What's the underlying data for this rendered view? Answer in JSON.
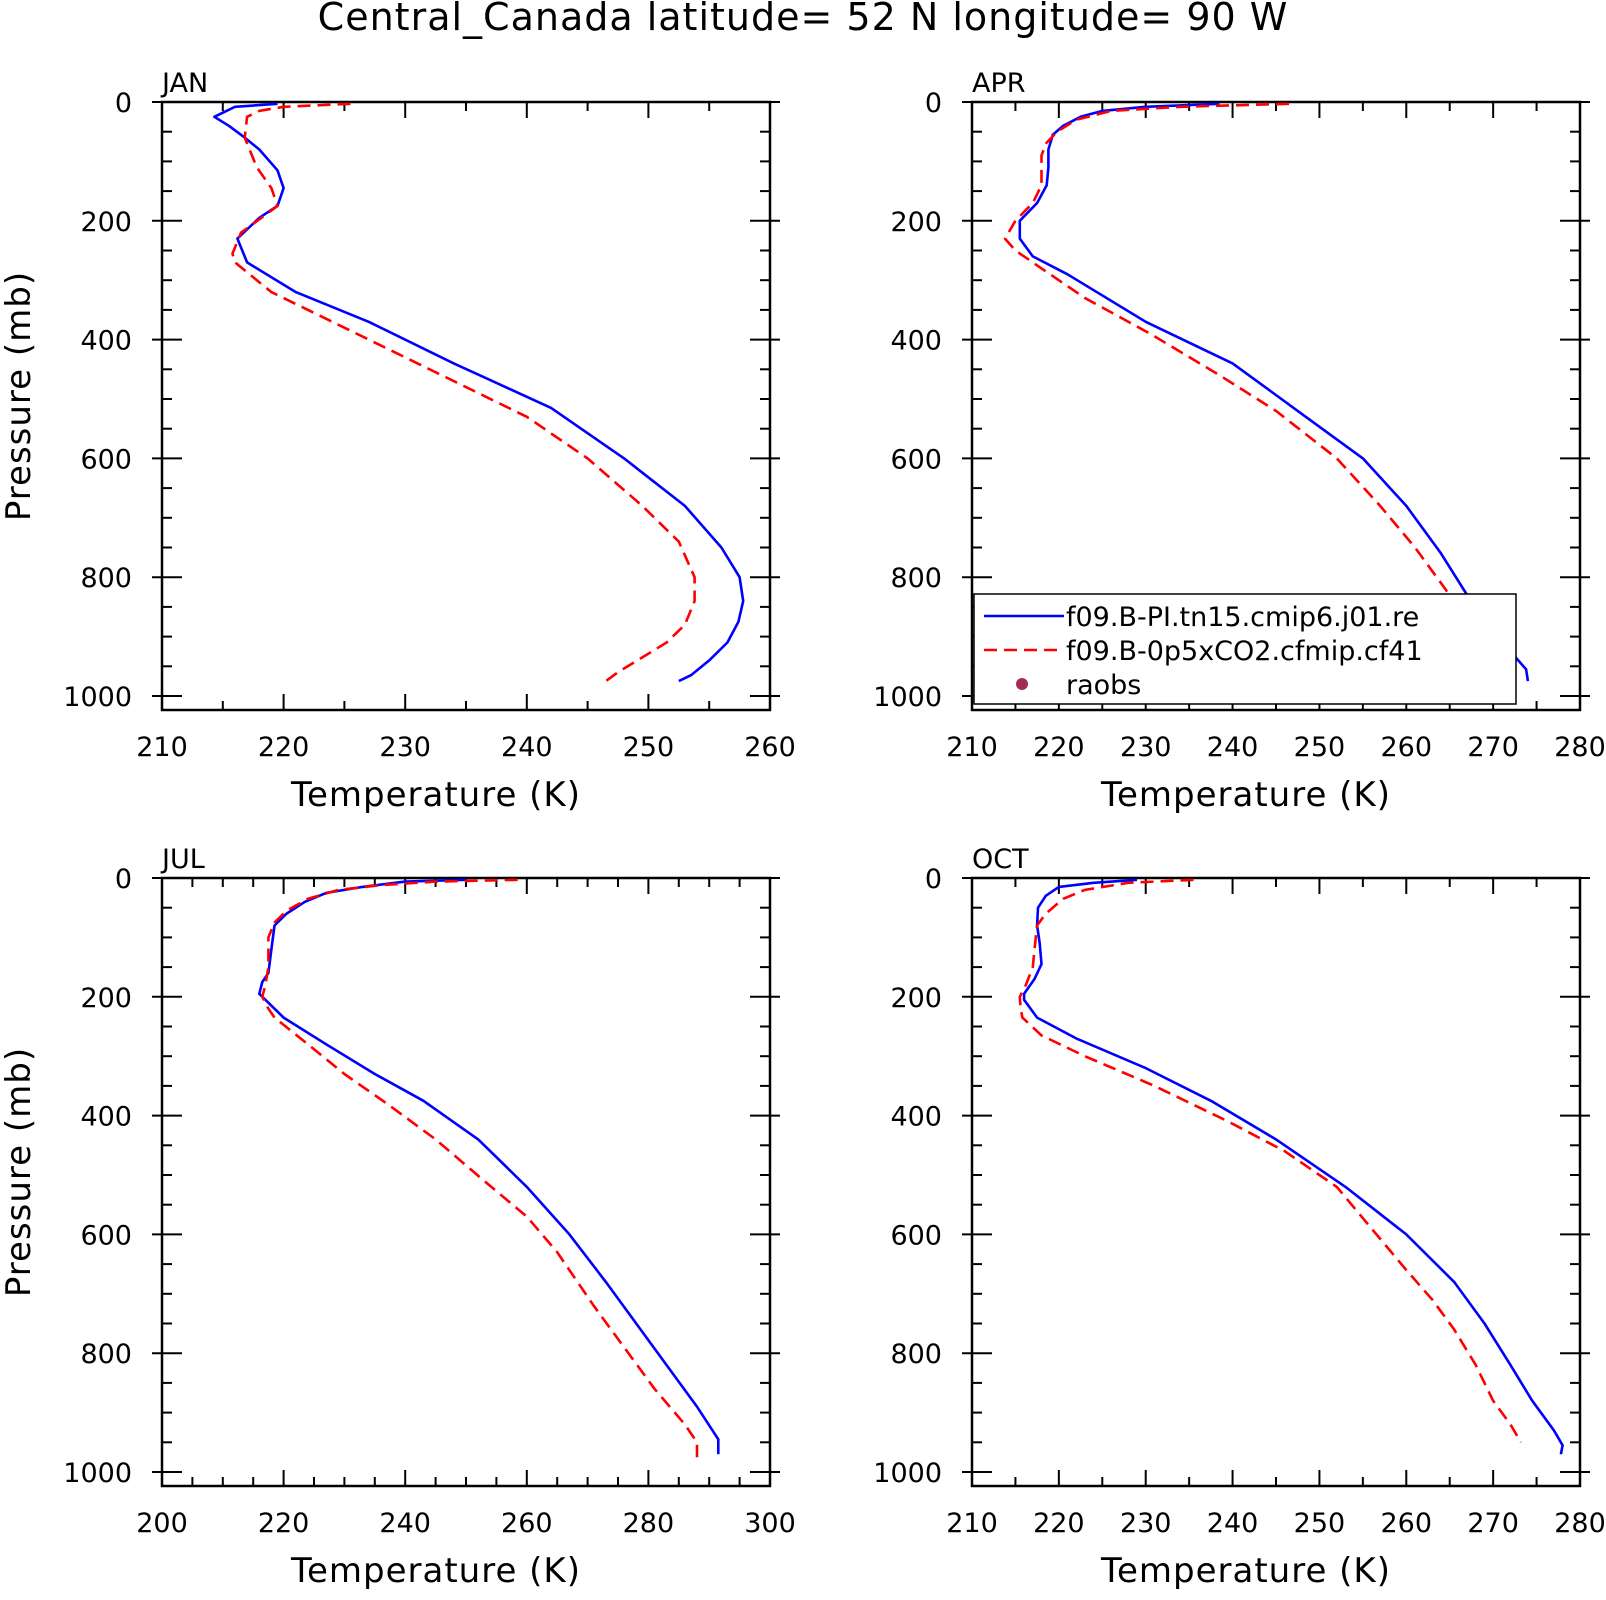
{
  "title": "Central_Canada  latitude= 52 N longitude= 90 W",
  "legend": {
    "entries": [
      {
        "label": "f09.B-PI.tn15.cmip6.j01.re",
        "color": "#0000ff",
        "style": "solid"
      },
      {
        "label": "f09.B-0p5xCO2.cfmip.cf41",
        "color": "#ff0000",
        "style": "dashed"
      },
      {
        "label": "raobs",
        "color": "#a52a5a",
        "style": "marker"
      }
    ],
    "panel": "APR",
    "placement": "lower-left"
  },
  "chart_data": [
    {
      "type": "line",
      "panel": "JAN",
      "xlabel": "Temperature (K)",
      "ylabel": "Pressure (mb)",
      "xlim": [
        210,
        260
      ],
      "ylim": [
        1000,
        0
      ],
      "xticks": [
        "210",
        "220",
        "230",
        "240",
        "250",
        "260"
      ],
      "yticks": [
        "0",
        "200",
        "400",
        "600",
        "800",
        "1000"
      ],
      "series": [
        {
          "name": "f09.B-PI.tn15.cmip6.j01.re",
          "color": "#0000ff",
          "points": [
            [
              219.5,
              3
            ],
            [
              216,
              8
            ],
            [
              214.3,
              25
            ],
            [
              215.5,
              40
            ],
            [
              216.8,
              60
            ],
            [
              218,
              80
            ],
            [
              219.5,
              115
            ],
            [
              220,
              145
            ],
            [
              219.5,
              175
            ],
            [
              218,
              195
            ],
            [
              216.2,
              230
            ],
            [
              217,
              270
            ],
            [
              221,
              320
            ],
            [
              227,
              370
            ],
            [
              234,
              440
            ],
            [
              242,
              515
            ],
            [
              248,
              600
            ],
            [
              253,
              680
            ],
            [
              256,
              750
            ],
            [
              257.5,
              800
            ],
            [
              257.8,
              840
            ],
            [
              257.4,
              875
            ],
            [
              256.5,
              910
            ],
            [
              255,
              940
            ],
            [
              253.5,
              965
            ],
            [
              252.5,
              975
            ]
          ]
        },
        {
          "name": "f09.B-0p5xCO2.cfmip.cf41",
          "color": "#ff0000",
          "points": [
            [
              225.5,
              3
            ],
            [
              220,
              8
            ],
            [
              218,
              15
            ],
            [
              217,
              25
            ],
            [
              216.8,
              60
            ],
            [
              217.8,
              110
            ],
            [
              219,
              145
            ],
            [
              219.5,
              175
            ],
            [
              218.5,
              190
            ],
            [
              216.5,
              220
            ],
            [
              215.8,
              255
            ],
            [
              216,
              270
            ],
            [
              219,
              320
            ],
            [
              225,
              380
            ],
            [
              233,
              460
            ],
            [
              240,
              530
            ],
            [
              245,
              600
            ],
            [
              249.5,
              680
            ],
            [
              252.5,
              740
            ],
            [
              253.8,
              800
            ],
            [
              253.8,
              840
            ],
            [
              253,
              880
            ],
            [
              251.5,
              910
            ],
            [
              249.5,
              935
            ],
            [
              247.5,
              960
            ],
            [
              246.5,
              975
            ]
          ]
        }
      ]
    },
    {
      "type": "line",
      "panel": "APR",
      "xlabel": "Temperature (K)",
      "ylabel": "",
      "xlim": [
        210,
        280
      ],
      "ylim": [
        1000,
        0
      ],
      "xticks": [
        "210",
        "220",
        "230",
        "240",
        "250",
        "260",
        "270",
        "280"
      ],
      "yticks": [
        "0",
        "200",
        "400",
        "600",
        "800",
        "1000"
      ],
      "series": [
        {
          "name": "f09.B-PI.tn15.cmip6.j01.re",
          "color": "#0000ff",
          "points": [
            [
              238.5,
              3
            ],
            [
              230,
              8
            ],
            [
              225,
              15
            ],
            [
              222.5,
              25
            ],
            [
              220.5,
              40
            ],
            [
              219.3,
              55
            ],
            [
              218.8,
              80
            ],
            [
              218.8,
              110
            ],
            [
              218.6,
              140
            ],
            [
              217.5,
              170
            ],
            [
              215.5,
              200
            ],
            [
              215.5,
              230
            ],
            [
              217,
              260
            ],
            [
              221,
              290
            ],
            [
              230,
              370
            ],
            [
              240,
              440
            ],
            [
              247.5,
              520
            ],
            [
              255,
              600
            ],
            [
              260,
              680
            ],
            [
              264,
              760
            ],
            [
              267,
              830
            ],
            [
              269.5,
              880
            ],
            [
              272,
              925
            ],
            [
              273.8,
              955
            ],
            [
              274,
              975
            ]
          ]
        },
        {
          "name": "f09.B-0p5xCO2.cfmip.cf41",
          "color": "#ff0000",
          "points": [
            [
              246.5,
              3
            ],
            [
              234,
              8
            ],
            [
              226,
              15
            ],
            [
              222,
              30
            ],
            [
              219.8,
              50
            ],
            [
              218.5,
              70
            ],
            [
              218,
              90
            ],
            [
              218,
              140
            ],
            [
              217,
              170
            ],
            [
              215,
              200
            ],
            [
              213.8,
              230
            ],
            [
              215,
              250
            ],
            [
              217.5,
              275
            ],
            [
              223,
              330
            ],
            [
              230.5,
              390
            ],
            [
              238.5,
              460
            ],
            [
              245,
              520
            ],
            [
              252,
              600
            ],
            [
              257,
              680
            ],
            [
              261,
              750
            ],
            [
              264.5,
              820
            ],
            [
              267,
              880
            ],
            [
              269.5,
              930
            ],
            [
              270.5,
              960
            ],
            [
              270.5,
              975
            ]
          ]
        }
      ]
    },
    {
      "type": "line",
      "panel": "JUL",
      "xlabel": "Temperature (K)",
      "ylabel": "Pressure (mb)",
      "xlim": [
        200,
        300
      ],
      "ylim": [
        1000,
        0
      ],
      "xticks": [
        "200",
        "220",
        "240",
        "260",
        "280",
        "300"
      ],
      "yticks": [
        "0",
        "200",
        "400",
        "600",
        "800",
        "1000"
      ],
      "series": [
        {
          "name": "f09.B-PI.tn15.cmip6.j01.re",
          "color": "#0000ff",
          "points": [
            [
              250,
              3
            ],
            [
              240,
              6
            ],
            [
              233,
              15
            ],
            [
              227,
              25
            ],
            [
              223.5,
              40
            ],
            [
              220.5,
              60
            ],
            [
              218.5,
              80
            ],
            [
              218,
              120
            ],
            [
              217.5,
              160
            ],
            [
              216.5,
              175
            ],
            [
              216,
              195
            ],
            [
              218,
              215
            ],
            [
              220,
              235
            ],
            [
              227,
              280
            ],
            [
              235,
              330
            ],
            [
              243,
              375
            ],
            [
              252,
              440
            ],
            [
              260,
              520
            ],
            [
              267,
              600
            ],
            [
              273,
              680
            ],
            [
              278,
              750
            ],
            [
              283,
              820
            ],
            [
              288,
              890
            ],
            [
              291.5,
              945
            ],
            [
              291.5,
              970
            ]
          ]
        },
        {
          "name": "f09.B-0p5xCO2.cfmip.cf41",
          "color": "#ff0000",
          "points": [
            [
              258.5,
              3
            ],
            [
              245,
              6
            ],
            [
              236,
              12
            ],
            [
              229,
              20
            ],
            [
              224,
              35
            ],
            [
              220.5,
              55
            ],
            [
              218.5,
              75
            ],
            [
              217.5,
              100
            ],
            [
              217.5,
              150
            ],
            [
              217,
              180
            ],
            [
              216.5,
              200
            ],
            [
              217.5,
              220
            ],
            [
              218.5,
              235
            ],
            [
              224,
              280
            ],
            [
              230,
              330
            ],
            [
              237,
              380
            ],
            [
              245,
              440
            ],
            [
              253,
              510
            ],
            [
              260,
              570
            ],
            [
              265,
              630
            ],
            [
              271,
              720
            ],
            [
              276,
              790
            ],
            [
              281,
              860
            ],
            [
              286,
              920
            ],
            [
              288,
              950
            ],
            [
              288,
              975
            ]
          ]
        }
      ]
    },
    {
      "type": "line",
      "panel": "OCT",
      "xlabel": "Temperature (K)",
      "ylabel": "",
      "xlim": [
        210,
        280
      ],
      "ylim": [
        1000,
        0
      ],
      "xticks": [
        "210",
        "220",
        "230",
        "240",
        "250",
        "260",
        "270",
        "280"
      ],
      "yticks": [
        "0",
        "200",
        "400",
        "600",
        "800",
        "1000"
      ],
      "series": [
        {
          "name": "f09.B-PI.tn15.cmip6.j01.re",
          "color": "#0000ff",
          "points": [
            [
              229,
              3
            ],
            [
              224,
              8
            ],
            [
              220,
              15
            ],
            [
              218.5,
              30
            ],
            [
              217.6,
              50
            ],
            [
              217.5,
              80
            ],
            [
              217.8,
              110
            ],
            [
              218,
              145
            ],
            [
              217.2,
              170
            ],
            [
              216,
              195
            ],
            [
              216,
              205
            ],
            [
              217.5,
              235
            ],
            [
              222,
              270
            ],
            [
              230,
              320
            ],
            [
              237.5,
              375
            ],
            [
              245,
              440
            ],
            [
              253,
              520
            ],
            [
              260,
              600
            ],
            [
              265.5,
              680
            ],
            [
              269,
              750
            ],
            [
              272,
              820
            ],
            [
              274.5,
              880
            ],
            [
              277,
              930
            ],
            [
              278,
              955
            ],
            [
              277.8,
              970
            ]
          ]
        },
        {
          "name": "f09.B-0p5xCO2.cfmip.cf41",
          "color": "#ff0000",
          "points": [
            [
              235.5,
              3
            ],
            [
              228,
              8
            ],
            [
              223,
              20
            ],
            [
              220.5,
              35
            ],
            [
              218.5,
              60
            ],
            [
              217.5,
              80
            ],
            [
              217.2,
              120
            ],
            [
              217,
              150
            ],
            [
              216.2,
              180
            ],
            [
              215.5,
              200
            ],
            [
              215.6,
              220
            ],
            [
              215.8,
              235
            ],
            [
              218,
              265
            ],
            [
              223,
              300
            ],
            [
              231,
              350
            ],
            [
              239.5,
              410
            ],
            [
              246,
              460
            ],
            [
              252,
              520
            ],
            [
              256,
              590
            ],
            [
              260,
              660
            ],
            [
              263,
              710
            ],
            [
              265.5,
              760
            ],
            [
              268,
              820
            ],
            [
              270,
              880
            ],
            [
              272,
              920
            ],
            [
              273.2,
              950
            ]
          ]
        }
      ]
    }
  ]
}
